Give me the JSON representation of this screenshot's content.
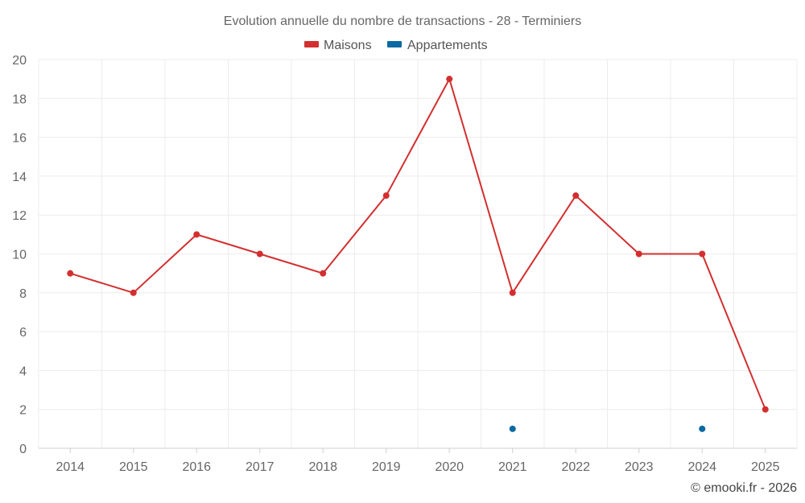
{
  "chart_data": {
    "type": "line",
    "title": "Evolution annuelle du nombre de transactions - 28 - Terminiers",
    "categories": [
      "2014",
      "2015",
      "2016",
      "2017",
      "2018",
      "2019",
      "2020",
      "2021",
      "2022",
      "2023",
      "2024",
      "2025"
    ],
    "series": [
      {
        "name": "Maisons",
        "color": "#d32f2f",
        "values": [
          9,
          8,
          11,
          10,
          9,
          13,
          19,
          8,
          13,
          10,
          10,
          2
        ]
      },
      {
        "name": "Appartements",
        "color": "#0b6aa2",
        "values": [
          null,
          null,
          null,
          null,
          null,
          null,
          null,
          1,
          null,
          null,
          1,
          null
        ]
      }
    ],
    "ylim": [
      0,
      20
    ],
    "yticks": [
      0,
      2,
      4,
      6,
      8,
      10,
      12,
      14,
      16,
      18,
      20
    ],
    "xlabel": "",
    "ylabel": "",
    "grid": true,
    "legend_position": "top-center"
  },
  "credit": "© emooki.fr - 2026"
}
